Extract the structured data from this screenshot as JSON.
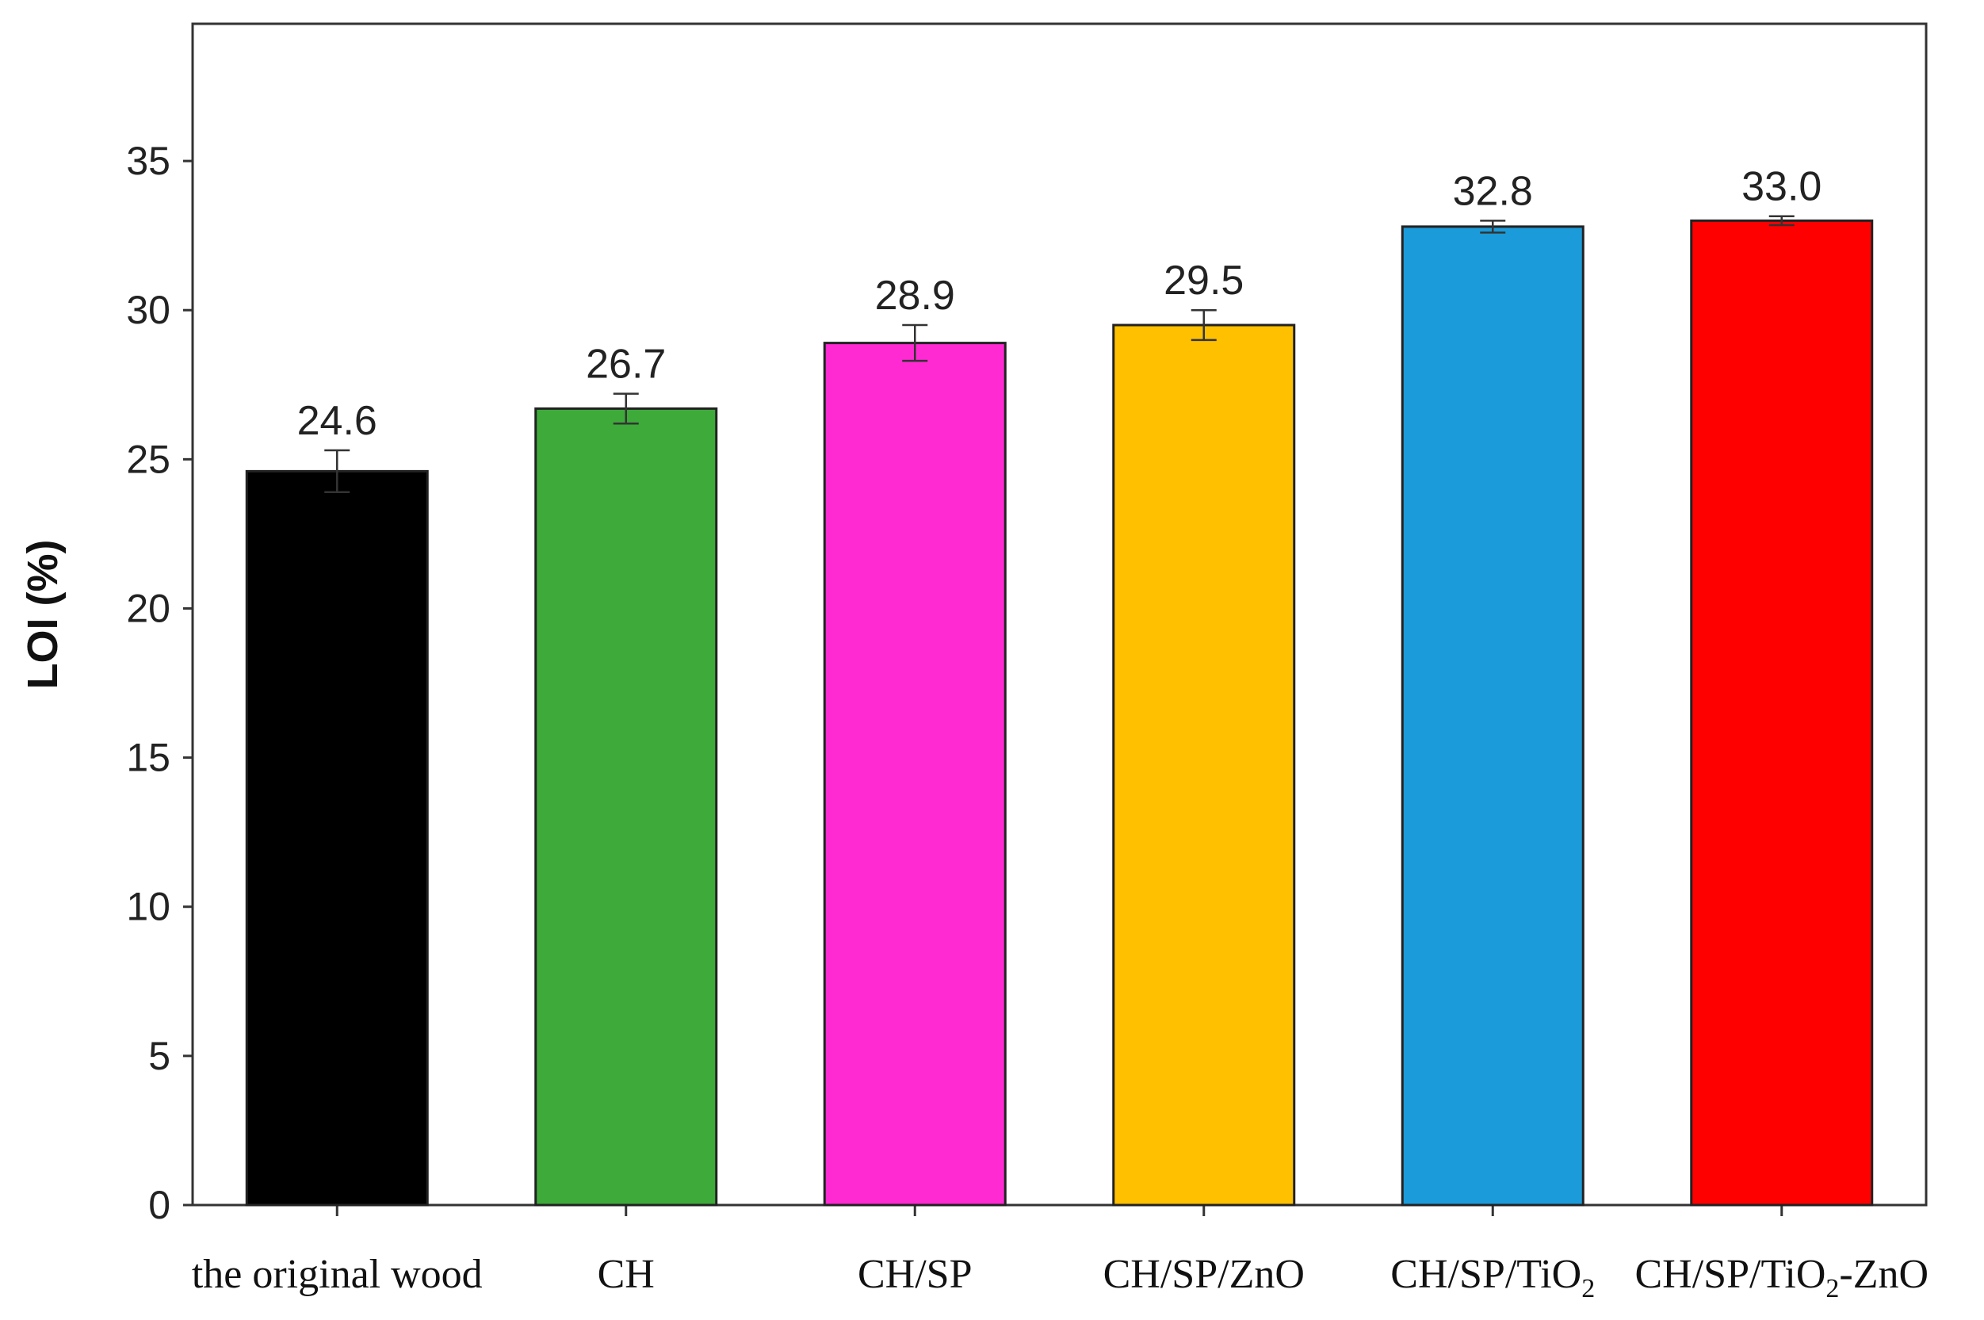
{
  "chart_data": {
    "type": "bar",
    "title": "",
    "xlabel": "",
    "ylabel": "LOI (%)",
    "ylim": [
      0,
      39.6
    ],
    "yticks": [
      0,
      5,
      10,
      15,
      20,
      25,
      30,
      35
    ],
    "grid": false,
    "legend": "none",
    "categories": [
      {
        "label": "the original wood",
        "sub": "",
        "tail": ""
      },
      {
        "label": "CH",
        "sub": "",
        "tail": ""
      },
      {
        "label": "CH/SP",
        "sub": "",
        "tail": ""
      },
      {
        "label": "CH/SP/ZnO",
        "sub": "",
        "tail": ""
      },
      {
        "label": "CH/SP/TiO",
        "sub": "2",
        "tail": ""
      },
      {
        "label": "CH/SP/TiO",
        "sub": "2",
        "tail": "-ZnO"
      }
    ],
    "values": [
      24.6,
      26.7,
      28.9,
      29.5,
      32.8,
      33.0
    ],
    "value_labels": [
      "24.6",
      "26.7",
      "28.9",
      "29.5",
      "32.8",
      "33.0"
    ],
    "errors": [
      0.7,
      0.5,
      0.6,
      0.5,
      0.2,
      0.15
    ],
    "colors": [
      "#000000",
      "#3daa3a",
      "#ff2ad2",
      "#ffc000",
      "#1b9bd9",
      "#ff0000"
    ]
  }
}
